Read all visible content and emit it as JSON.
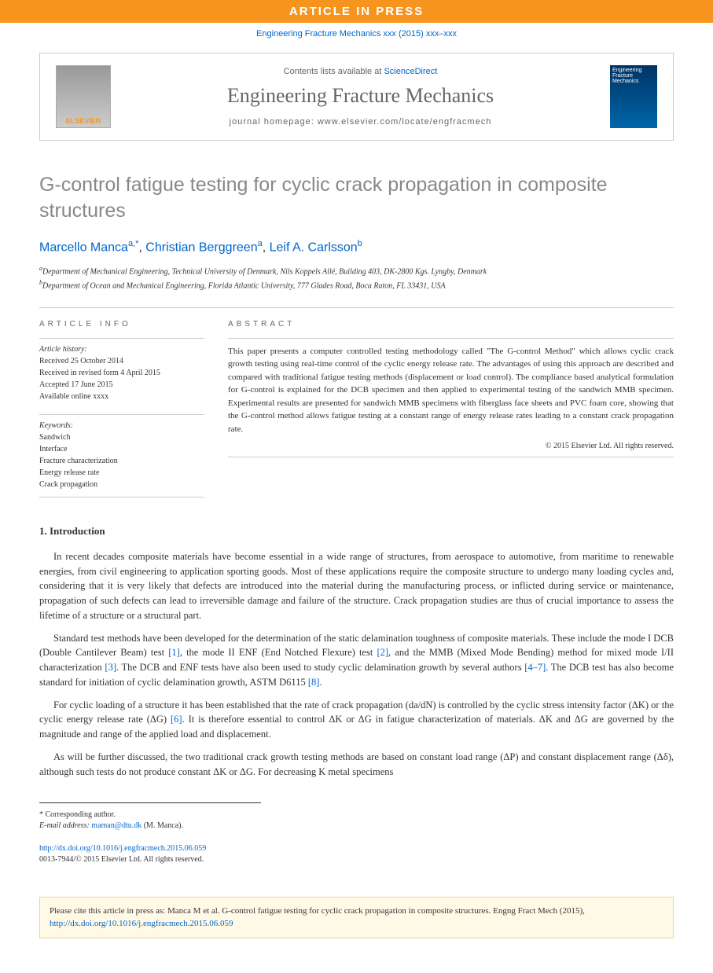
{
  "banner": {
    "text": "ARTICLE IN PRESS"
  },
  "citation_top": "Engineering Fracture Mechanics xxx (2015) xxx–xxx",
  "masthead": {
    "elsevier": "ELSEVIER",
    "contents_prefix": "Contents lists available at ",
    "contents_link": "ScienceDirect",
    "journal": "Engineering Fracture Mechanics",
    "homepage_prefix": "journal homepage: ",
    "homepage_url": "www.elsevier.com/locate/engfracmech",
    "cover_text": "Engineering Fracture Mechanics"
  },
  "title": "G-control fatigue testing for cyclic crack propagation in composite structures",
  "authors": {
    "a1_name": "Marcello Manca",
    "a1_aff": "a,",
    "a1_corr": "*",
    "a2_name": "Christian Berggreen",
    "a2_aff": "a",
    "a3_name": "Leif A. Carlsson",
    "a3_aff": "b"
  },
  "affiliations": {
    "a": "Department of Mechanical Engineering, Technical University of Denmark, Nils Koppels Allé, Building 403, DK-2800 Kgs. Lyngby, Denmark",
    "b": "Department of Ocean and Mechanical Engineering, Florida Atlantic University, 777 Glades Road, Boca Raton, FL 33431, USA"
  },
  "info": {
    "header": "ARTICLE INFO",
    "history_label": "Article history:",
    "received": "Received 25 October 2014",
    "revised": "Received in revised form 4 April 2015",
    "accepted": "Accepted 17 June 2015",
    "available": "Available online xxxx",
    "keywords_label": "Keywords:",
    "keywords": [
      "Sandwich",
      "Interface",
      "Fracture characterization",
      "Energy release rate",
      "Crack propagation"
    ]
  },
  "abstract": {
    "header": "ABSTRACT",
    "text": "This paper presents a computer controlled testing methodology called \"The G-control Method\" which allows cyclic crack growth testing using real-time control of the cyclic energy release rate. The advantages of using this approach are described and compared with traditional fatigue testing methods (displacement or load control). The compliance based analytical formulation for G-control is explained for the DCB specimen and then applied to experimental testing of the sandwich MMB specimen. Experimental results are presented for sandwich MMB specimens with fiberglass face sheets and PVC foam core, showing that the G-control method allows fatigue testing at a constant range of energy release rates leading to a constant crack propagation rate.",
    "copyright": "© 2015 Elsevier Ltd. All rights reserved."
  },
  "section1": {
    "heading": "1. Introduction",
    "p1_a": "In recent decades composite materials have become essential in a wide range of structures, from aerospace to automotive, from maritime to renewable energies, from civil engineering to application sporting goods. Most of these applications require the composite structure to undergo many loading cycles and, considering that it is very likely that defects are introduced into the material during the manufacturing process, or inflicted during service or maintenance, propagation of such defects can lead to irreversible damage and failure of the structure. Crack propagation studies are thus of crucial importance to assess the lifetime of a structure or a structural part.",
    "p2_a": "Standard test methods have been developed for the determination of the static delamination toughness of composite materials. These include the mode I DCB (Double Cantilever Beam) test ",
    "p2_r1": "[1]",
    "p2_b": ", the mode II ENF (End Notched Flexure) test ",
    "p2_r2": "[2]",
    "p2_c": ", and the MMB (Mixed Mode Bending) method for mixed mode I/II characterization ",
    "p2_r3": "[3]",
    "p2_d": ". The DCB and ENF tests have also been used to study cyclic delamination growth by several authors ",
    "p2_r4": "[4–7]",
    "p2_e": ". The DCB test has also become standard for initiation of cyclic delamination growth, ASTM D6115 ",
    "p2_r5": "[8]",
    "p2_f": ".",
    "p3_a": "For cyclic loading of a structure it has been established that the rate of crack propagation (da/dN) is controlled by the cyclic stress intensity factor (ΔK) or the cyclic energy release rate (ΔG) ",
    "p3_r1": "[6]",
    "p3_b": ". It is therefore essential to control ΔK or ΔG in fatigue characterization of materials. ΔK and ΔG are governed by the magnitude and range of the applied load and displacement.",
    "p4_a": "As will be further discussed, the two traditional crack growth testing methods are based on constant load range (ΔP) and constant displacement range (Δδ), although such tests do not produce constant ΔK or ΔG. For decreasing K metal specimens"
  },
  "footnotes": {
    "corr": "* Corresponding author.",
    "email_label": "E-mail address: ",
    "email": "maman@dtu.dk",
    "email_suffix": " (M. Manca)."
  },
  "doi": {
    "link": "http://dx.doi.org/10.1016/j.engfracmech.2015.06.059",
    "issn": "0013-7944/© 2015 Elsevier Ltd. All rights reserved."
  },
  "citebox": {
    "text_a": "Please cite this article in press as: Manca M et al. G-control fatigue testing for cyclic crack propagation in composite structures. Engng Fract Mech (2015), ",
    "link": "http://dx.doi.org/10.1016/j.engfracmech.2015.06.059"
  },
  "colors": {
    "orange": "#f7941e",
    "link": "#0066cc",
    "grey_title": "#888888",
    "border": "#cccccc",
    "citebox_bg": "#fff9e6",
    "citebox_border": "#e6d98f"
  }
}
